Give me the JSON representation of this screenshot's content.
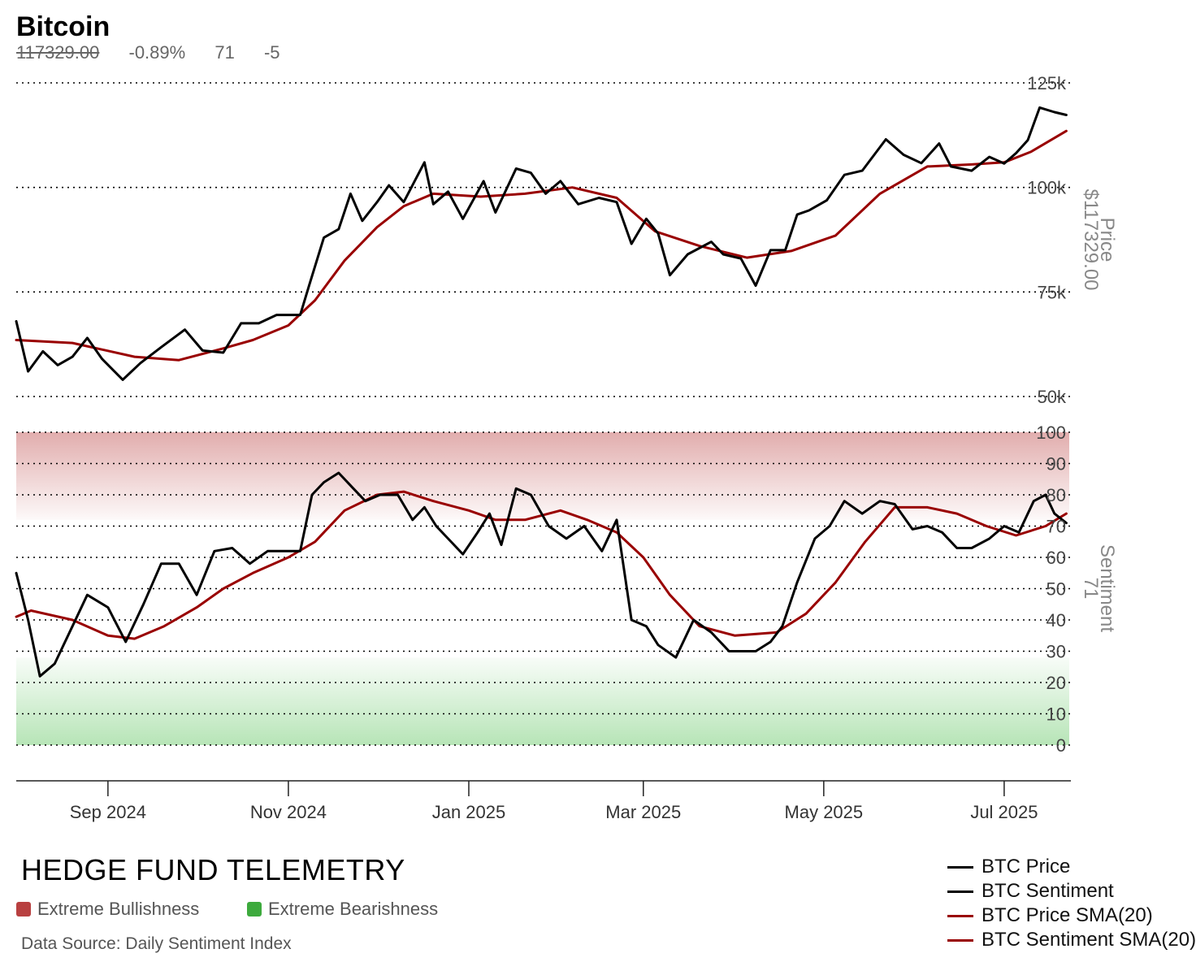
{
  "title": "Bitcoin",
  "stats": {
    "price": "117329.00",
    "change": "-0.89%",
    "sentiment": "71",
    "sentiment_change": "-5"
  },
  "brand": "HEDGE FUND TELEMETRY",
  "key": {
    "bull_label": "Extreme Bullishness",
    "bull_color": "#b84040",
    "bear_label": "Extreme Bearishness",
    "bear_color": "#3daa3d"
  },
  "source": "Data Source: Daily Sentiment Index",
  "legend": [
    {
      "label": "BTC Price",
      "color": "#000000"
    },
    {
      "label": "BTC Sentiment",
      "color": "#000000"
    },
    {
      "label": "BTC Price SMA(20)",
      "color": "#990000"
    },
    {
      "label": "BTC Sentiment SMA(20)",
      "color": "#990000"
    }
  ],
  "chart_data": [
    {
      "type": "line",
      "ylabel": "Price",
      "ylabel_value": "$117329.00",
      "ylim": [
        50000,
        125000
      ],
      "yticks": [
        {
          "v": 125000,
          "label": "125k"
        },
        {
          "v": 100000,
          "label": "100k"
        },
        {
          "v": 75000,
          "label": "75k"
        },
        {
          "v": 50000,
          "label": "50k"
        }
      ],
      "grid": true,
      "x_range": [
        "2024-08-01",
        "2025-07-23"
      ],
      "xticks": [
        {
          "date": "2024-09-01",
          "label": "Sep 2024"
        },
        {
          "date": "2024-11-01",
          "label": "Nov 2024"
        },
        {
          "date": "2025-01-01",
          "label": "Jan 2025"
        },
        {
          "date": "2025-03-01",
          "label": "Mar 2025"
        },
        {
          "date": "2025-05-01",
          "label": "May 2025"
        },
        {
          "date": "2025-07-01",
          "label": "Jul 2025"
        }
      ],
      "series": [
        {
          "name": "BTC Price",
          "color": "#000000",
          "points": [
            [
              "2024-08-01",
              68000
            ],
            [
              "2024-08-05",
              56000
            ],
            [
              "2024-08-10",
              60800
            ],
            [
              "2024-08-15",
              57500
            ],
            [
              "2024-08-20",
              59500
            ],
            [
              "2024-08-25",
              64000
            ],
            [
              "2024-08-30",
              59000
            ],
            [
              "2024-09-06",
              54000
            ],
            [
              "2024-09-12",
              58000
            ],
            [
              "2024-09-19",
              61800
            ],
            [
              "2024-09-27",
              66000
            ],
            [
              "2024-10-03",
              61000
            ],
            [
              "2024-10-10",
              60500
            ],
            [
              "2024-10-16",
              67500
            ],
            [
              "2024-10-22",
              67500
            ],
            [
              "2024-10-28",
              69500
            ],
            [
              "2024-11-01",
              69500
            ],
            [
              "2024-11-05",
              69500
            ],
            [
              "2024-11-08",
              76500
            ],
            [
              "2024-11-13",
              88000
            ],
            [
              "2024-11-18",
              90000
            ],
            [
              "2024-11-22",
              98500
            ],
            [
              "2024-11-26",
              92000
            ],
            [
              "2024-12-01",
              96500
            ],
            [
              "2024-12-05",
              100500
            ],
            [
              "2024-12-10",
              96500
            ],
            [
              "2024-12-17",
              106000
            ],
            [
              "2024-12-20",
              96000
            ],
            [
              "2024-12-25",
              99000
            ],
            [
              "2024-12-30",
              92500
            ],
            [
              "2025-01-06",
              101500
            ],
            [
              "2025-01-10",
              94000
            ],
            [
              "2025-01-17",
              104500
            ],
            [
              "2025-01-22",
              103500
            ],
            [
              "2025-01-27",
              98500
            ],
            [
              "2025-02-01",
              101500
            ],
            [
              "2025-02-07",
              96000
            ],
            [
              "2025-02-14",
              97500
            ],
            [
              "2025-02-20",
              96500
            ],
            [
              "2025-02-25",
              86500
            ],
            [
              "2025-03-02",
              92500
            ],
            [
              "2025-03-06",
              89000
            ],
            [
              "2025-03-10",
              79000
            ],
            [
              "2025-03-16",
              84000
            ],
            [
              "2025-03-24",
              87000
            ],
            [
              "2025-03-28",
              84000
            ],
            [
              "2025-04-03",
              83000
            ],
            [
              "2025-04-08",
              76500
            ],
            [
              "2025-04-13",
              85000
            ],
            [
              "2025-04-18",
              85000
            ],
            [
              "2025-04-22",
              93500
            ],
            [
              "2025-04-26",
              94500
            ],
            [
              "2025-05-02",
              96900
            ],
            [
              "2025-05-08",
              103000
            ],
            [
              "2025-05-14",
              104000
            ],
            [
              "2025-05-22",
              111500
            ],
            [
              "2025-05-28",
              107800
            ],
            [
              "2025-06-03",
              105800
            ],
            [
              "2025-06-09",
              110500
            ],
            [
              "2025-06-13",
              105000
            ],
            [
              "2025-06-20",
              104000
            ],
            [
              "2025-06-26",
              107300
            ],
            [
              "2025-07-01",
              105700
            ],
            [
              "2025-07-05",
              108200
            ],
            [
              "2025-07-09",
              111300
            ],
            [
              "2025-07-13",
              119100
            ],
            [
              "2025-07-18",
              118000
            ],
            [
              "2025-07-22",
              117329
            ]
          ]
        },
        {
          "name": "BTC Price SMA(20)",
          "color": "#990000",
          "points": [
            [
              "2024-08-01",
              63500
            ],
            [
              "2024-08-20",
              62800
            ],
            [
              "2024-09-10",
              59500
            ],
            [
              "2024-09-25",
              58700
            ],
            [
              "2024-10-10",
              61500
            ],
            [
              "2024-10-20",
              63500
            ],
            [
              "2024-11-01",
              67000
            ],
            [
              "2024-11-10",
              73000
            ],
            [
              "2024-11-20",
              82500
            ],
            [
              "2024-12-01",
              90500
            ],
            [
              "2024-12-10",
              95500
            ],
            [
              "2024-12-20",
              98500
            ],
            [
              "2025-01-05",
              97800
            ],
            [
              "2025-01-20",
              98500
            ],
            [
              "2025-02-05",
              100000
            ],
            [
              "2025-02-20",
              97500
            ],
            [
              "2025-03-05",
              89500
            ],
            [
              "2025-03-20",
              86000
            ],
            [
              "2025-04-05",
              83200
            ],
            [
              "2025-04-20",
              84800
            ],
            [
              "2025-05-05",
              88500
            ],
            [
              "2025-05-20",
              98500
            ],
            [
              "2025-06-05",
              105000
            ],
            [
              "2025-06-20",
              105500
            ],
            [
              "2025-07-01",
              106000
            ],
            [
              "2025-07-10",
              108500
            ],
            [
              "2025-07-22",
              113500
            ]
          ]
        }
      ]
    },
    {
      "type": "line",
      "ylabel": "Sentiment",
      "ylabel_value": "71",
      "ylim": [
        0,
        100
      ],
      "yticks": [
        {
          "v": 100,
          "label": "100"
        },
        {
          "v": 90,
          "label": "90"
        },
        {
          "v": 80,
          "label": "80"
        },
        {
          "v": 70,
          "label": "70"
        },
        {
          "v": 60,
          "label": "60"
        },
        {
          "v": 50,
          "label": "50"
        },
        {
          "v": 40,
          "label": "40"
        },
        {
          "v": 30,
          "label": "30"
        },
        {
          "v": 20,
          "label": "20"
        },
        {
          "v": 10,
          "label": "10"
        },
        {
          "v": 0,
          "label": "0"
        }
      ],
      "grid": true,
      "bands": [
        {
          "from": 72,
          "to": 100,
          "name": "Extreme Bullishness",
          "color": "#c96a6a"
        },
        {
          "from": 0,
          "to": 28,
          "name": "Extreme Bearishness",
          "color": "#7ccf7c"
        }
      ],
      "series": [
        {
          "name": "BTC Sentiment",
          "color": "#000000",
          "points": [
            [
              "2024-08-01",
              55
            ],
            [
              "2024-08-05",
              40
            ],
            [
              "2024-08-09",
              22
            ],
            [
              "2024-08-14",
              26
            ],
            [
              "2024-08-20",
              38
            ],
            [
              "2024-08-25",
              48
            ],
            [
              "2024-09-01",
              44
            ],
            [
              "2024-09-07",
              33
            ],
            [
              "2024-09-13",
              45
            ],
            [
              "2024-09-19",
              58
            ],
            [
              "2024-09-25",
              58
            ],
            [
              "2024-10-01",
              48
            ],
            [
              "2024-10-07",
              62
            ],
            [
              "2024-10-13",
              63
            ],
            [
              "2024-10-19",
              58
            ],
            [
              "2024-10-25",
              62
            ],
            [
              "2024-11-01",
              62
            ],
            [
              "2024-11-05",
              62
            ],
            [
              "2024-11-09",
              80
            ],
            [
              "2024-11-13",
              84
            ],
            [
              "2024-11-18",
              87
            ],
            [
              "2024-11-23",
              82
            ],
            [
              "2024-11-27",
              78
            ],
            [
              "2024-12-02",
              80
            ],
            [
              "2024-12-08",
              80
            ],
            [
              "2024-12-13",
              72
            ],
            [
              "2024-12-17",
              76
            ],
            [
              "2024-12-21",
              70
            ],
            [
              "2024-12-25",
              66
            ],
            [
              "2024-12-30",
              61
            ],
            [
              "2025-01-04",
              68
            ],
            [
              "2025-01-08",
              74
            ],
            [
              "2025-01-12",
              64
            ],
            [
              "2025-01-17",
              82
            ],
            [
              "2025-01-22",
              80
            ],
            [
              "2025-01-28",
              70
            ],
            [
              "2025-02-03",
              66
            ],
            [
              "2025-02-09",
              70
            ],
            [
              "2025-02-15",
              62
            ],
            [
              "2025-02-20",
              72
            ],
            [
              "2025-02-25",
              40
            ],
            [
              "2025-03-02",
              38
            ],
            [
              "2025-03-06",
              32
            ],
            [
              "2025-03-12",
              28
            ],
            [
              "2025-03-18",
              40
            ],
            [
              "2025-03-24",
              36
            ],
            [
              "2025-03-30",
              30
            ],
            [
              "2025-04-03",
              30
            ],
            [
              "2025-04-08",
              30
            ],
            [
              "2025-04-13",
              33
            ],
            [
              "2025-04-17",
              38
            ],
            [
              "2025-04-22",
              52
            ],
            [
              "2025-04-28",
              66
            ],
            [
              "2025-05-03",
              70
            ],
            [
              "2025-05-08",
              78
            ],
            [
              "2025-05-14",
              74
            ],
            [
              "2025-05-20",
              78
            ],
            [
              "2025-05-25",
              77
            ],
            [
              "2025-05-31",
              69
            ],
            [
              "2025-06-05",
              70
            ],
            [
              "2025-06-10",
              68
            ],
            [
              "2025-06-15",
              63
            ],
            [
              "2025-06-20",
              63
            ],
            [
              "2025-06-26",
              66
            ],
            [
              "2025-07-01",
              70
            ],
            [
              "2025-07-06",
              68
            ],
            [
              "2025-07-11",
              78
            ],
            [
              "2025-07-15",
              80
            ],
            [
              "2025-07-18",
              74
            ],
            [
              "2025-07-22",
              71
            ]
          ]
        },
        {
          "name": "BTC Sentiment SMA(20)",
          "color": "#990000",
          "points": [
            [
              "2024-08-01",
              41
            ],
            [
              "2024-08-06",
              43
            ],
            [
              "2024-08-20",
              40
            ],
            [
              "2024-09-01",
              35
            ],
            [
              "2024-09-10",
              34
            ],
            [
              "2024-09-20",
              38
            ],
            [
              "2024-10-01",
              44
            ],
            [
              "2024-10-10",
              50
            ],
            [
              "2024-10-20",
              55
            ],
            [
              "2024-11-01",
              60
            ],
            [
              "2024-11-10",
              65
            ],
            [
              "2024-11-20",
              75
            ],
            [
              "2024-12-01",
              80
            ],
            [
              "2024-12-10",
              81
            ],
            [
              "2024-12-20",
              78
            ],
            [
              "2025-01-01",
              75
            ],
            [
              "2025-01-10",
              72
            ],
            [
              "2025-01-20",
              72
            ],
            [
              "2025-02-01",
              75
            ],
            [
              "2025-02-10",
              72
            ],
            [
              "2025-02-20",
              68
            ],
            [
              "2025-03-01",
              60
            ],
            [
              "2025-03-10",
              48
            ],
            [
              "2025-03-20",
              38
            ],
            [
              "2025-04-01",
              35
            ],
            [
              "2025-04-15",
              36
            ],
            [
              "2025-04-25",
              42
            ],
            [
              "2025-05-05",
              52
            ],
            [
              "2025-05-15",
              65
            ],
            [
              "2025-05-25",
              76
            ],
            [
              "2025-06-05",
              76
            ],
            [
              "2025-06-15",
              74
            ],
            [
              "2025-06-25",
              70
            ],
            [
              "2025-07-05",
              67
            ],
            [
              "2025-07-15",
              70
            ],
            [
              "2025-07-22",
              74
            ]
          ]
        }
      ]
    }
  ]
}
